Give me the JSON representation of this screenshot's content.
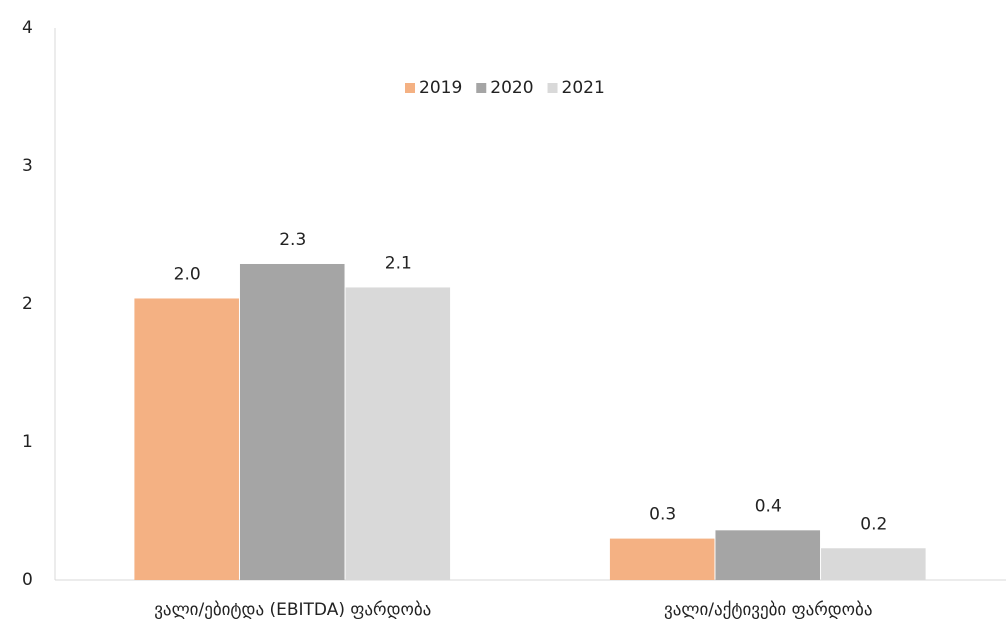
{
  "chart_data": {
    "type": "bar",
    "categories": [
      "ვალი/ებიტდა (EBITDA) ფარდობა",
      "ვალი/აქტივები ფარდობა"
    ],
    "series": [
      {
        "name": "2019",
        "color": "#f4b183",
        "values": [
          2.04,
          0.3
        ],
        "value_labels": [
          "2.0",
          "0.3"
        ]
      },
      {
        "name": "2020",
        "color": "#a5a5a5",
        "values": [
          2.29,
          0.36
        ],
        "value_labels": [
          "2.3",
          "0.4"
        ]
      },
      {
        "name": "2021",
        "color": "#d9d9d9",
        "values": [
          2.12,
          0.23
        ],
        "value_labels": [
          "2.1",
          "0.2"
        ]
      }
    ],
    "ylim": [
      0,
      4
    ],
    "yticks": [
      0,
      1,
      2,
      3,
      4
    ],
    "grid": false,
    "legend": "top"
  }
}
